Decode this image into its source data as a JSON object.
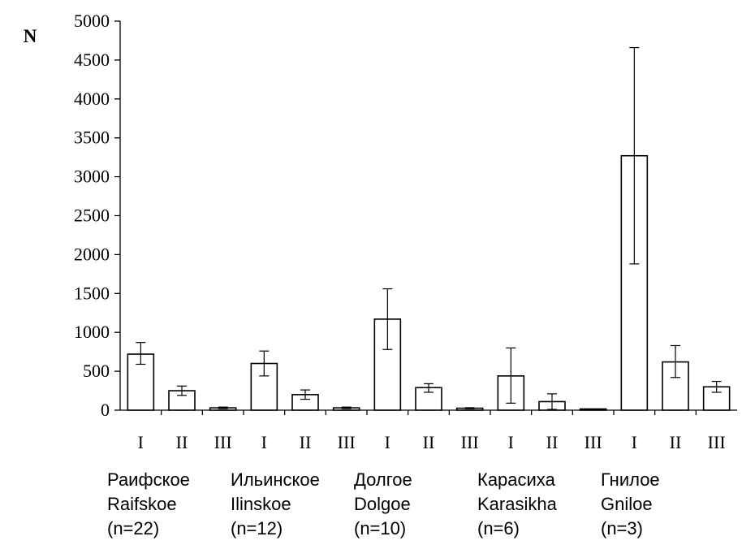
{
  "chart_data": {
    "type": "bar",
    "ylabel": "N",
    "ylim": [
      0,
      5000
    ],
    "yticks": [
      0,
      500,
      1000,
      1500,
      2000,
      2500,
      3000,
      3500,
      4000,
      4500,
      5000
    ],
    "grid": false,
    "legend": "none",
    "error_bars": true,
    "bar_color": "#ffffff",
    "line_color": "#000000",
    "groups": [
      {
        "label_ru": "Раифское",
        "label_en": "Raifskoe",
        "n": "(n=22)",
        "bars": [
          {
            "category": "I",
            "value": 720,
            "err_low": 590,
            "err_high": 870
          },
          {
            "category": "II",
            "value": 250,
            "err_low": 190,
            "err_high": 310
          },
          {
            "category": "III",
            "value": 30,
            "err_low": 20,
            "err_high": 40
          }
        ]
      },
      {
        "label_ru": "Ильинское",
        "label_en": "Ilinskoe",
        "n": "(n=12)",
        "bars": [
          {
            "category": "I",
            "value": 600,
            "err_low": 440,
            "err_high": 760
          },
          {
            "category": "II",
            "value": 200,
            "err_low": 140,
            "err_high": 260
          },
          {
            "category": "III",
            "value": 30,
            "err_low": 20,
            "err_high": 40
          }
        ]
      },
      {
        "label_ru": "Долгое",
        "label_en": "Dolgoe",
        "n": "(n=10)",
        "bars": [
          {
            "category": "I",
            "value": 1170,
            "err_low": 780,
            "err_high": 1560
          },
          {
            "category": "II",
            "value": 290,
            "err_low": 230,
            "err_high": 340
          },
          {
            "category": "III",
            "value": 25,
            "err_low": 18,
            "err_high": 32
          }
        ]
      },
      {
        "label_ru": "Карасиха",
        "label_en": "Karasikha",
        "n": "(n=6)",
        "bars": [
          {
            "category": "I",
            "value": 440,
            "err_low": 90,
            "err_high": 800
          },
          {
            "category": "II",
            "value": 110,
            "err_low": 10,
            "err_high": 210
          },
          {
            "category": "III",
            "value": 5,
            "err_low": 0,
            "err_high": 10
          }
        ]
      },
      {
        "label_ru": "Гнилое",
        "label_en": "Gniloe",
        "n": "(n=3)",
        "bars": [
          {
            "category": "I",
            "value": 3270,
            "err_low": 1880,
            "err_high": 4660
          },
          {
            "category": "II",
            "value": 620,
            "err_low": 420,
            "err_high": 830
          },
          {
            "category": "III",
            "value": 300,
            "err_low": 230,
            "err_high": 370
          }
        ]
      }
    ]
  }
}
